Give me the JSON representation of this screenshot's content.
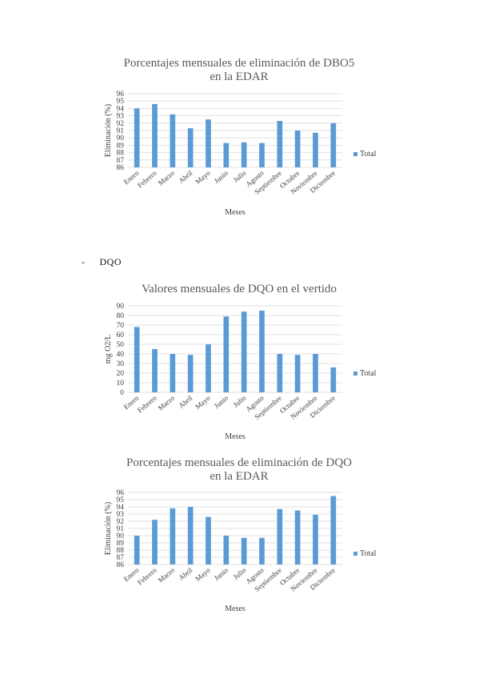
{
  "section_heading": {
    "dash": "-",
    "text": "DQO"
  },
  "chart_data": [
    {
      "type": "bar",
      "title_lines": [
        "Porcentajes mensuales de eliminación de DBO5",
        "en la EDAR"
      ],
      "xlabel": "Meses",
      "ylabel": "Eliminación (%)",
      "categories": [
        "Enero",
        "Febrero",
        "Marzo",
        "Abril",
        "Mayo",
        "Junio",
        "Julio",
        "Agosto",
        "Septiembre",
        "Octubre",
        "Noviembre",
        "Diciembre"
      ],
      "yticks": [
        86,
        87,
        88,
        89,
        90,
        91,
        92,
        93,
        94,
        95,
        96
      ],
      "ylim": [
        86,
        96
      ],
      "series": [
        {
          "name": "Total",
          "color": "#5b9bd5",
          "values": [
            94.0,
            94.6,
            93.2,
            91.3,
            92.5,
            89.3,
            89.4,
            89.3,
            92.3,
            91.0,
            90.7,
            92.0
          ]
        }
      ],
      "grid": true,
      "legend": "right"
    },
    {
      "type": "bar",
      "title_lines": [
        "Valores mensuales de DQO en el vertido"
      ],
      "xlabel": "Meses",
      "ylabel": "mg O2/L",
      "categories": [
        "Enero",
        "Febrero",
        "Marzo",
        "Abril",
        "Mayo",
        "Junio",
        "Julio",
        "Agosto",
        "Septiembre",
        "Octubre",
        "Noviembre",
        "Diciembre"
      ],
      "yticks": [
        0,
        10,
        20,
        30,
        40,
        50,
        60,
        70,
        80,
        90
      ],
      "ylim": [
        0,
        90
      ],
      "series": [
        {
          "name": "Total",
          "color": "#5b9bd5",
          "values": [
            68,
            45,
            40,
            39,
            50,
            79,
            84,
            85,
            40,
            39,
            40,
            26
          ]
        }
      ],
      "grid": true,
      "legend": "right"
    },
    {
      "type": "bar",
      "title_lines": [
        "Porcentajes mensuales de eliminación de DQO",
        "en la EDAR"
      ],
      "xlabel": "Meses",
      "ylabel": "Eliminación (%)",
      "categories": [
        "Enero",
        "Febrero",
        "Marzo",
        "Abril",
        "Mayo",
        "Junio",
        "Julio",
        "Agosto",
        "Septiembre",
        "Octubre",
        "Noviembre",
        "Diciembre"
      ],
      "yticks": [
        86,
        87,
        88,
        89,
        90,
        91,
        92,
        93,
        94,
        95,
        96
      ],
      "ylim": [
        86,
        96
      ],
      "series": [
        {
          "name": "Total",
          "color": "#5b9bd5",
          "values": [
            90.0,
            92.2,
            93.8,
            94.0,
            92.6,
            90.0,
            89.7,
            89.7,
            93.7,
            93.5,
            92.9,
            95.5
          ]
        }
      ],
      "grid": true,
      "legend": "right"
    }
  ]
}
